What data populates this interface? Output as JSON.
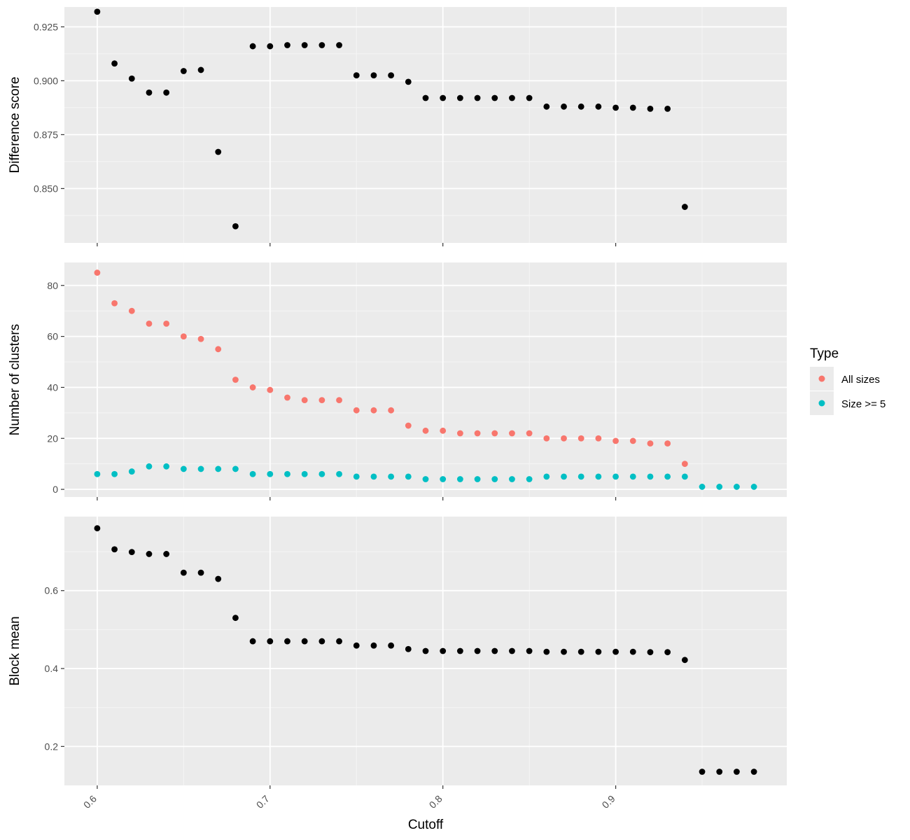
{
  "chart_data": {
    "type": "scatter",
    "xlabel": "Cutoff",
    "x_ticks": [
      0.6,
      0.7,
      0.8,
      0.9
    ],
    "xlim": [
      0.581,
      0.999
    ],
    "legend": {
      "title": "Type",
      "placement": "right",
      "entries": [
        {
          "label": "All sizes",
          "color": "#F8766D"
        },
        {
          "label": "Size >= 5",
          "color": "#00BFC4"
        }
      ]
    },
    "panels": [
      {
        "ylabel": "Difference score",
        "ylim": [
          0.8248,
          0.9342
        ],
        "y_ticks": [
          0.85,
          0.875,
          0.9,
          0.925
        ],
        "y_tick_labels": [
          "0.850",
          "0.875",
          "0.900",
          "0.925"
        ],
        "series": [
          {
            "color": "#000000",
            "x": [
              0.6,
              0.61,
              0.62,
              0.63,
              0.64,
              0.65,
              0.66,
              0.67,
              0.68,
              0.69,
              0.7,
              0.71,
              0.72,
              0.73,
              0.74,
              0.75,
              0.76,
              0.77,
              0.78,
              0.79,
              0.8,
              0.81,
              0.82,
              0.83,
              0.84,
              0.85,
              0.86,
              0.87,
              0.88,
              0.89,
              0.9,
              0.91,
              0.92,
              0.93,
              0.94
            ],
            "y": [
              0.932,
              0.908,
              0.901,
              0.8945,
              0.8945,
              0.9045,
              0.905,
              0.867,
              0.8325,
              0.916,
              0.916,
              0.9165,
              0.9165,
              0.9165,
              0.9165,
              0.9025,
              0.9025,
              0.9025,
              0.8995,
              0.892,
              0.892,
              0.892,
              0.892,
              0.892,
              0.892,
              0.892,
              0.888,
              0.888,
              0.888,
              0.888,
              0.8875,
              0.8875,
              0.887,
              0.887,
              0.8415
            ]
          }
        ]
      },
      {
        "ylabel": "Number of clusters",
        "ylim": [
          -3,
          89
        ],
        "y_ticks": [
          0,
          20,
          40,
          60,
          80
        ],
        "y_tick_labels": [
          "0",
          "20",
          "40",
          "60",
          "80"
        ],
        "series": [
          {
            "name": "All sizes",
            "color": "#F8766D",
            "x": [
              0.6,
              0.61,
              0.62,
              0.63,
              0.64,
              0.65,
              0.66,
              0.67,
              0.68,
              0.69,
              0.7,
              0.71,
              0.72,
              0.73,
              0.74,
              0.75,
              0.76,
              0.77,
              0.78,
              0.79,
              0.8,
              0.81,
              0.82,
              0.83,
              0.84,
              0.85,
              0.86,
              0.87,
              0.88,
              0.89,
              0.9,
              0.91,
              0.92,
              0.93,
              0.94
            ],
            "y": [
              85,
              73,
              70,
              65,
              65,
              60,
              59,
              55,
              43,
              40,
              39,
              36,
              35,
              35,
              35,
              31,
              31,
              31,
              25,
              23,
              23,
              22,
              22,
              22,
              22,
              22,
              20,
              20,
              20,
              20,
              19,
              19,
              18,
              18,
              10
            ]
          },
          {
            "name": "Size >= 5",
            "color": "#00BFC4",
            "x": [
              0.6,
              0.61,
              0.62,
              0.63,
              0.64,
              0.65,
              0.66,
              0.67,
              0.68,
              0.69,
              0.7,
              0.71,
              0.72,
              0.73,
              0.74,
              0.75,
              0.76,
              0.77,
              0.78,
              0.79,
              0.8,
              0.81,
              0.82,
              0.83,
              0.84,
              0.85,
              0.86,
              0.87,
              0.88,
              0.89,
              0.9,
              0.91,
              0.92,
              0.93,
              0.94,
              0.95,
              0.96,
              0.97,
              0.98
            ],
            "y": [
              6,
              6,
              7,
              9,
              9,
              8,
              8,
              8,
              8,
              6,
              6,
              6,
              6,
              6,
              6,
              5,
              5,
              5,
              5,
              4,
              4,
              4,
              4,
              4,
              4,
              4,
              5,
              5,
              5,
              5,
              5,
              5,
              5,
              5,
              5,
              1,
              1,
              1,
              1
            ]
          }
        ]
      },
      {
        "ylabel": "Block mean",
        "ylim": [
          0.1,
          0.79
        ],
        "y_ticks": [
          0.2,
          0.4,
          0.6
        ],
        "y_tick_labels": [
          "0.2",
          "0.4",
          "0.6"
        ],
        "series": [
          {
            "color": "#000000",
            "x": [
              0.6,
              0.61,
              0.62,
              0.63,
              0.64,
              0.65,
              0.66,
              0.67,
              0.68,
              0.69,
              0.7,
              0.71,
              0.72,
              0.73,
              0.74,
              0.75,
              0.76,
              0.77,
              0.78,
              0.79,
              0.8,
              0.81,
              0.82,
              0.83,
              0.84,
              0.85,
              0.86,
              0.87,
              0.88,
              0.89,
              0.9,
              0.91,
              0.92,
              0.93,
              0.94,
              0.95,
              0.96,
              0.97,
              0.98
            ],
            "y": [
              0.76,
              0.706,
              0.699,
              0.694,
              0.694,
              0.646,
              0.646,
              0.63,
              0.53,
              0.47,
              0.47,
              0.47,
              0.47,
              0.47,
              0.47,
              0.459,
              0.459,
              0.459,
              0.45,
              0.445,
              0.445,
              0.445,
              0.445,
              0.445,
              0.445,
              0.445,
              0.443,
              0.443,
              0.443,
              0.443,
              0.443,
              0.443,
              0.442,
              0.442,
              0.422,
              0.135,
              0.135,
              0.135,
              0.135
            ]
          }
        ]
      }
    ]
  }
}
